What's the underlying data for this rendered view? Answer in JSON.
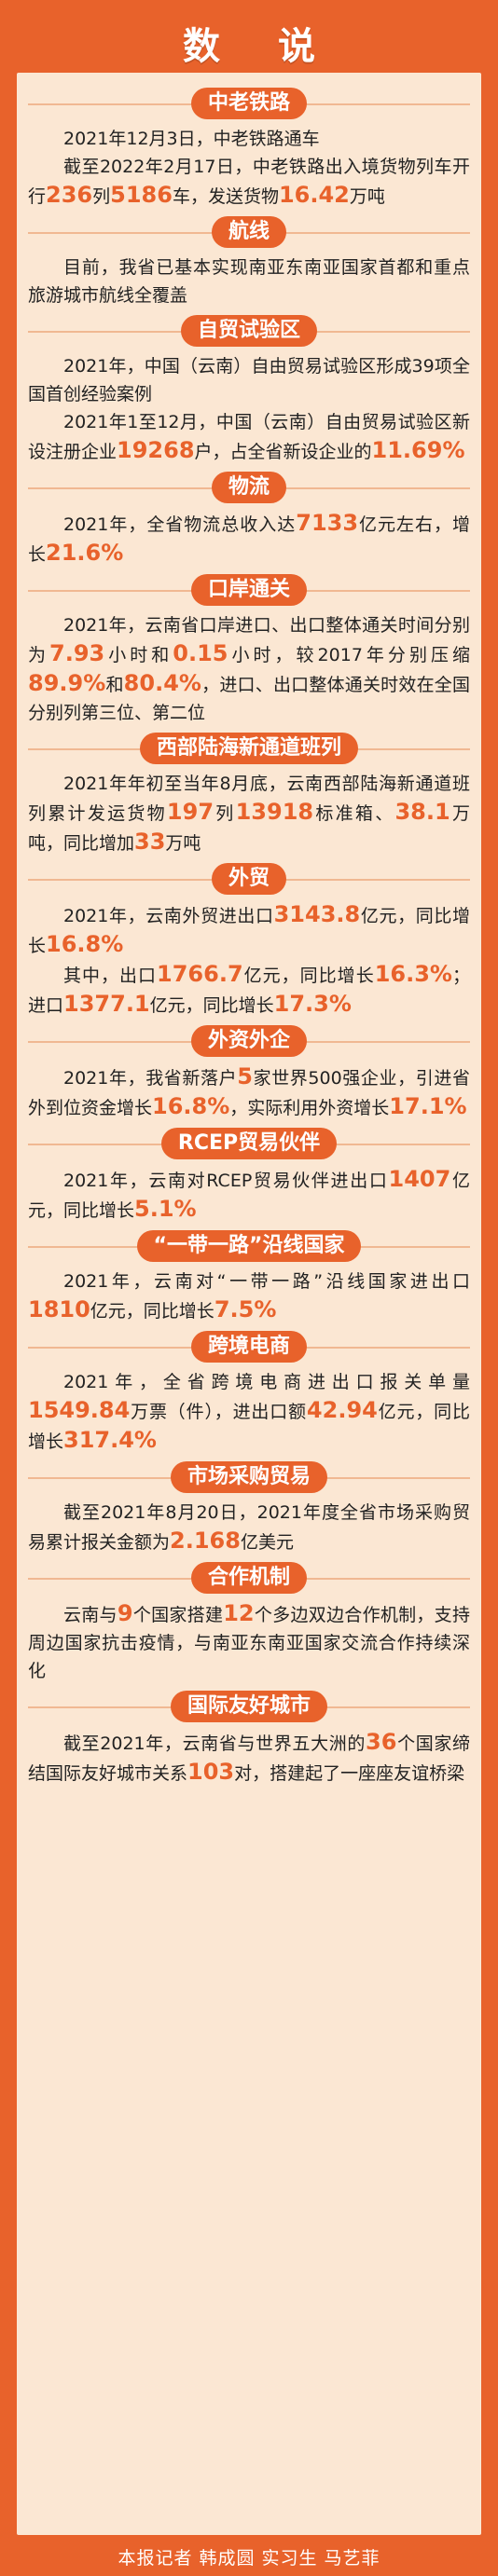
{
  "title": "数 说",
  "sections": [
    {
      "header": "中老铁路",
      "paras": [
        [
          {
            "t": "2021年12月3日，中老铁路通车"
          }
        ],
        [
          {
            "t": "截至2022年2月17日，中老铁路出入境货物列车开行"
          },
          {
            "n": "236"
          },
          {
            "t": "列"
          },
          {
            "n": "5186"
          },
          {
            "t": "车，发送货物"
          },
          {
            "n": "16.42"
          },
          {
            "t": "万吨"
          }
        ]
      ]
    },
    {
      "header": "航线",
      "paras": [
        [
          {
            "t": "目前，我省已基本实现南亚东南亚国家首都和重点旅游城市航线全覆盖"
          }
        ]
      ]
    },
    {
      "header": "自贸试验区",
      "paras": [
        [
          {
            "t": "2021年，中国（云南）自由贸易试验区形成39项全国首创经验案例"
          }
        ],
        [
          {
            "t": "2021年1至12月，中国（云南）自由贸易试验区新设注册企业"
          },
          {
            "n": "19268"
          },
          {
            "t": "户，占全省新设企业的"
          },
          {
            "n": "11.69%"
          }
        ]
      ]
    },
    {
      "header": "物流",
      "paras": [
        [
          {
            "t": "2021年，全省物流总收入达"
          },
          {
            "n": "7133"
          },
          {
            "t": "亿元左右，增长"
          },
          {
            "n": "21.6%"
          }
        ]
      ]
    },
    {
      "header": "口岸通关",
      "paras": [
        [
          {
            "t": "2021年，云南省口岸进口、出口整体通关时间分别为"
          },
          {
            "n": "7.93"
          },
          {
            "t": "小时和"
          },
          {
            "n": "0.15"
          },
          {
            "t": "小时，较2017年分别压缩"
          },
          {
            "n": "89.9%"
          },
          {
            "t": "和"
          },
          {
            "n": "80.4%"
          },
          {
            "t": "，进口、出口整体通关时效在全国分别列第三位、第二位"
          }
        ]
      ]
    },
    {
      "header": "西部陆海新通道班列",
      "paras": [
        [
          {
            "t": "2021年年初至当年8月底，云南西部陆海新通道班列累计发运货物"
          },
          {
            "n": "197"
          },
          {
            "t": "列"
          },
          {
            "n": "13918"
          },
          {
            "t": "标准箱、"
          },
          {
            "n": "38.1"
          },
          {
            "t": "万吨，同比增加"
          },
          {
            "n": "33"
          },
          {
            "t": "万吨"
          }
        ]
      ]
    },
    {
      "header": "外贸",
      "paras": [
        [
          {
            "t": "2021年，云南外贸进出口"
          },
          {
            "n": "3143.8"
          },
          {
            "t": "亿元，同比增长"
          },
          {
            "n": "16.8%"
          }
        ],
        [
          {
            "t": "其中，出口"
          },
          {
            "n": "1766.7"
          },
          {
            "t": "亿元，同比增长"
          },
          {
            "n": "16.3%"
          },
          {
            "t": "；进口"
          },
          {
            "n": "1377.1"
          },
          {
            "t": "亿元，同比增长"
          },
          {
            "n": "17.3%"
          }
        ]
      ]
    },
    {
      "header": "外资外企",
      "paras": [
        [
          {
            "t": "2021年，我省新落户"
          },
          {
            "n": "5"
          },
          {
            "t": "家世界500强企业，引进省外到位资金增长"
          },
          {
            "n": "16.8%"
          },
          {
            "t": "，实际利用外资增长"
          },
          {
            "n": "17.1%"
          }
        ]
      ]
    },
    {
      "header": "RCEP贸易伙伴",
      "paras": [
        [
          {
            "t": "2021年，云南对RCEP贸易伙伴进出口"
          },
          {
            "n": "1407"
          },
          {
            "t": "亿元，同比增长"
          },
          {
            "n": "5.1%"
          }
        ]
      ]
    },
    {
      "header": "“一带一路”沿线国家",
      "paras": [
        [
          {
            "t": "2021年，云南对“一带一路”沿线国家进出口"
          },
          {
            "n": "1810"
          },
          {
            "t": "亿元，同比增长"
          },
          {
            "n": "7.5%"
          }
        ]
      ]
    },
    {
      "header": "跨境电商",
      "paras": [
        [
          {
            "t": "2021年，全省跨境电商进出口报关单量"
          },
          {
            "n": "1549.84"
          },
          {
            "t": "万票（件），进出口额"
          },
          {
            "n": "42.94"
          },
          {
            "t": "亿元，同比增长"
          },
          {
            "n": "317.4%"
          }
        ]
      ]
    },
    {
      "header": "市场采购贸易",
      "paras": [
        [
          {
            "t": "截至2021年8月20日，2021年度全省市场采购贸易累计报关金额为"
          },
          {
            "n": "2.168"
          },
          {
            "t": "亿美元"
          }
        ]
      ]
    },
    {
      "header": "合作机制",
      "paras": [
        [
          {
            "t": "云南与"
          },
          {
            "n": "9"
          },
          {
            "t": "个国家搭建"
          },
          {
            "n": "12"
          },
          {
            "t": "个多边双边合作机制，支持周边国家抗击疫情，与南亚东南亚国家交流合作持续深化"
          }
        ]
      ]
    },
    {
      "header": "国际友好城市",
      "paras": [
        [
          {
            "t": "截至2021年，云南省与世界五大洲的"
          },
          {
            "n": "36"
          },
          {
            "t": "个国家缔结国际友好城市关系"
          },
          {
            "n": "103"
          },
          {
            "t": "对，搭建起了一座座友谊桥梁"
          }
        ]
      ]
    }
  ],
  "footer": {
    "line": "本报记者 韩成圆 实习生 马艺菲"
  },
  "colors": {
    "accent": "#e8622b",
    "panel": "#fbe7d3"
  }
}
